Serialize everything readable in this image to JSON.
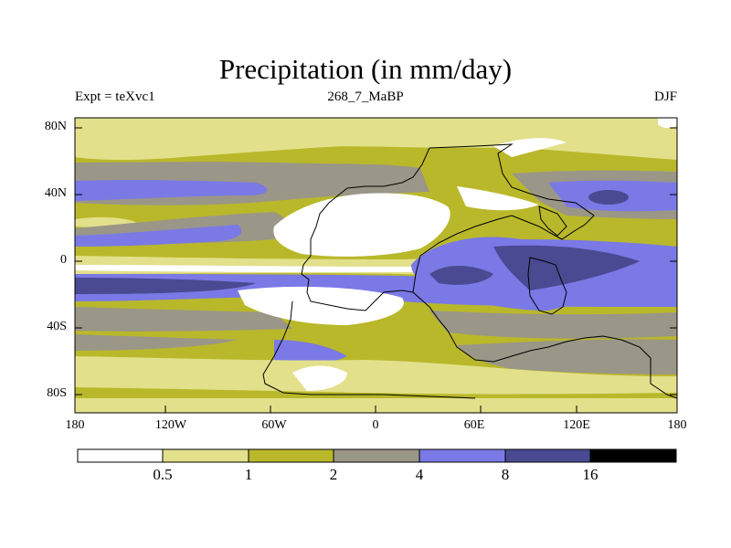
{
  "title": "Precipitation (in mm/day)",
  "subtitle_left": "Expt = teXvc1",
  "subtitle_center": "268_7_MaBP",
  "subtitle_right": "DJF",
  "lat_ticks": [
    "80N",
    "40N",
    "0",
    "40S",
    "80S"
  ],
  "lon_ticks": [
    "180",
    "120W",
    "60W",
    "0",
    "60E",
    "120E",
    "180"
  ],
  "colorbar": {
    "labels": [
      "0.5",
      "1",
      "2",
      "4",
      "8",
      "16"
    ],
    "colors": [
      "#ffffff",
      "#e2e08a",
      "#b9b82a",
      "#9a9688",
      "#7a79e6",
      "#4a4a92",
      "#000000"
    ]
  }
}
